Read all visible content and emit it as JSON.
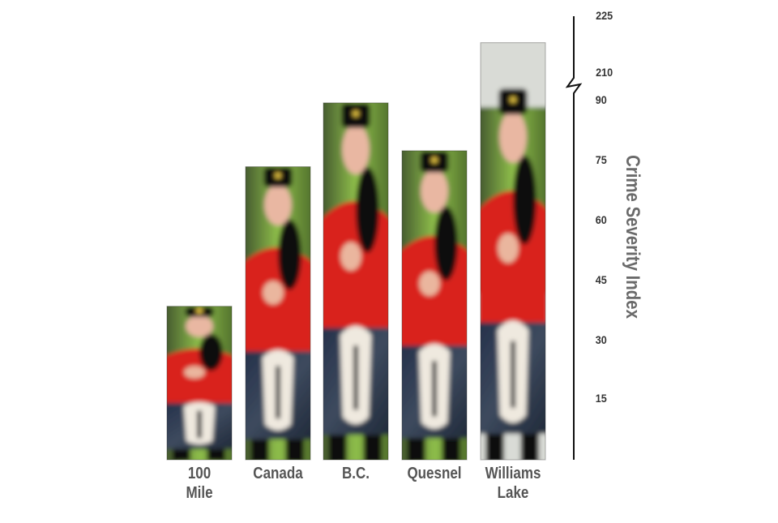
{
  "chart_data": {
    "type": "bar",
    "title": "",
    "xlabel": "",
    "ylabel": "Crime Severity Index",
    "categories": [
      "100\nMile",
      "Canada",
      "B.C.",
      "Quesnel",
      "Williams\nLake"
    ],
    "values": [
      38.5,
      73.5,
      89.5,
      77.5,
      218
    ],
    "axis_break": {
      "from": 90,
      "to": 210
    },
    "yticks": [
      15,
      30,
      45,
      60,
      75,
      90,
      210,
      225
    ],
    "ylim": [
      0,
      225
    ],
    "grid": false,
    "legend": "none",
    "bar_fill": "photo of RCMP piper in red serge",
    "colors": {
      "red": "#d9231f",
      "tartan": "#2e3a4f",
      "black": "#111111",
      "label": "#555555"
    }
  }
}
